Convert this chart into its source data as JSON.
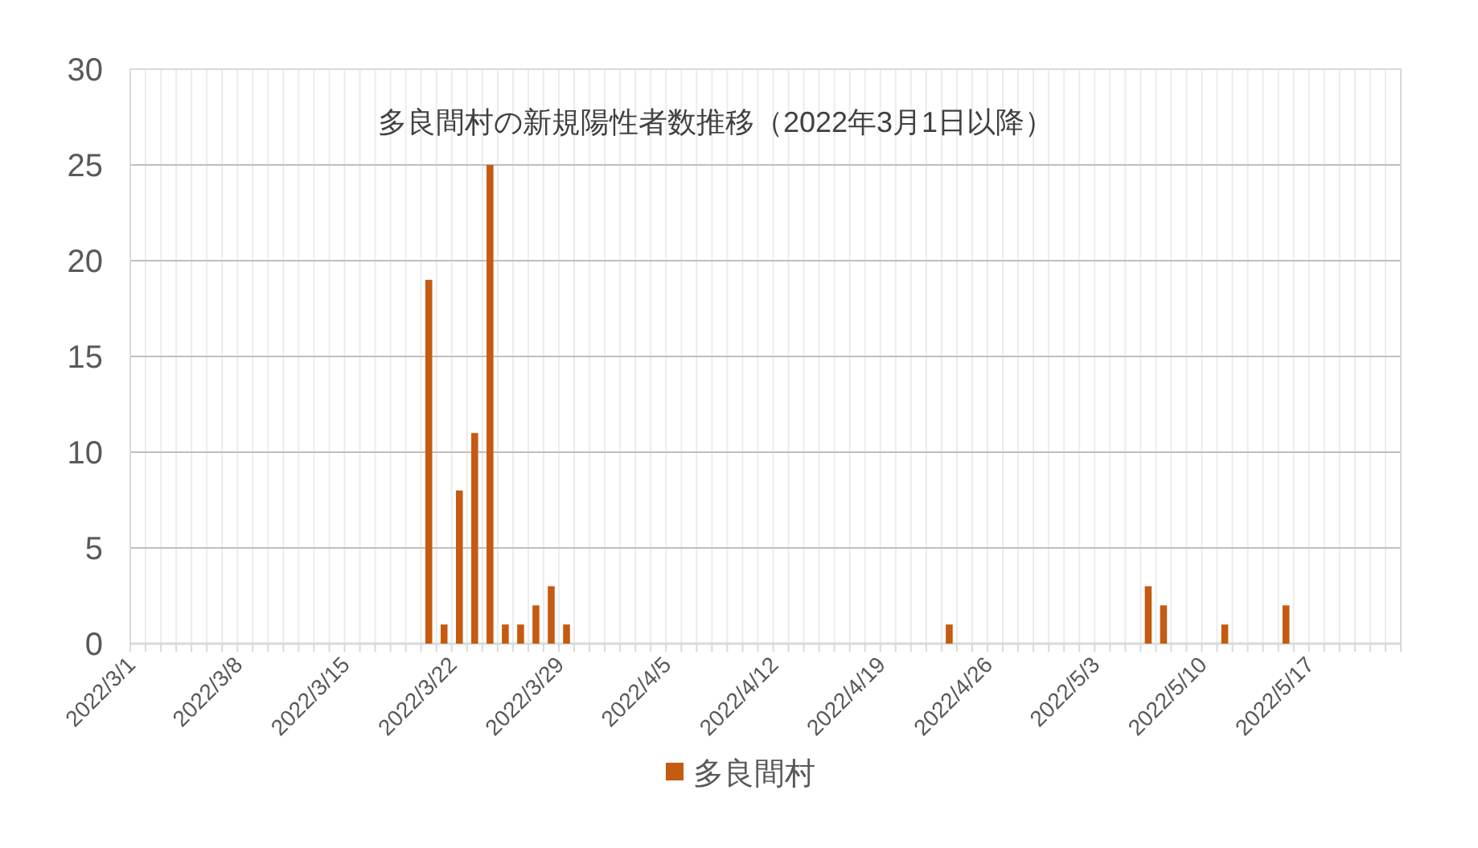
{
  "chart_data": {
    "type": "bar",
    "title": "多良間村の新規陽性者数推移（2022年3月1日以降）",
    "x": [
      "2022-03-20T12:00",
      "2022-03-21T12:00",
      "2022-03-22T12:00",
      "2022-03-23T12:00",
      "2022-03-24T12:00",
      "2022-03-25T12:00",
      "2022-03-26T12:00",
      "2022-03-27T12:00",
      "2022-03-28T12:00",
      "2022-03-29T12:00",
      "2022-04-23T12:00",
      "2022-05-06T12:00",
      "2022-05-07T12:00",
      "2022-05-11T12:00",
      "2022-05-15T12:00"
    ],
    "series": [
      {
        "name": "多良間村",
        "color": "#c55a11",
        "values": [
          19,
          1,
          8,
          11,
          25,
          1,
          1,
          2,
          3,
          1,
          1,
          3,
          2,
          1,
          2
        ]
      }
    ],
    "xlim": [
      "2022-03-01",
      "2022-05-23"
    ],
    "xticks": [
      {
        "value": "2022-03-01",
        "label": "2022/3/1"
      },
      {
        "value": "2022-03-02",
        "label": null
      },
      {
        "value": "2022-03-03",
        "label": null
      },
      {
        "value": "2022-03-04",
        "label": null
      },
      {
        "value": "2022-03-05",
        "label": null
      },
      {
        "value": "2022-03-06",
        "label": null
      },
      {
        "value": "2022-03-07",
        "label": null
      },
      {
        "value": "2022-03-08",
        "label": "2022/3/8"
      },
      {
        "value": "2022-03-09",
        "label": null
      },
      {
        "value": "2022-03-10",
        "label": null
      },
      {
        "value": "2022-03-11",
        "label": null
      },
      {
        "value": "2022-03-12",
        "label": null
      },
      {
        "value": "2022-03-13",
        "label": null
      },
      {
        "value": "2022-03-14",
        "label": null
      },
      {
        "value": "2022-03-15",
        "label": "2022/3/15"
      },
      {
        "value": "2022-03-16",
        "label": null
      },
      {
        "value": "2022-03-17",
        "label": null
      },
      {
        "value": "2022-03-18",
        "label": null
      },
      {
        "value": "2022-03-19",
        "label": null
      },
      {
        "value": "2022-03-20",
        "label": null
      },
      {
        "value": "2022-03-21",
        "label": null
      },
      {
        "value": "2022-03-22",
        "label": "2022/3/22"
      },
      {
        "value": "2022-03-23",
        "label": null
      },
      {
        "value": "2022-03-24",
        "label": null
      },
      {
        "value": "2022-03-25",
        "label": null
      },
      {
        "value": "2022-03-26",
        "label": null
      },
      {
        "value": "2022-03-27",
        "label": null
      },
      {
        "value": "2022-03-28",
        "label": null
      },
      {
        "value": "2022-03-29",
        "label": "2022/3/29"
      },
      {
        "value": "2022-03-30",
        "label": null
      },
      {
        "value": "2022-03-31",
        "label": null
      },
      {
        "value": "2022-04-01",
        "label": null
      },
      {
        "value": "2022-04-02",
        "label": null
      },
      {
        "value": "2022-04-03",
        "label": null
      },
      {
        "value": "2022-04-04",
        "label": null
      },
      {
        "value": "2022-04-05",
        "label": "2022/4/5"
      },
      {
        "value": "2022-04-06",
        "label": null
      },
      {
        "value": "2022-04-07",
        "label": null
      },
      {
        "value": "2022-04-08",
        "label": null
      },
      {
        "value": "2022-04-09",
        "label": null
      },
      {
        "value": "2022-04-10",
        "label": null
      },
      {
        "value": "2022-04-11",
        "label": null
      },
      {
        "value": "2022-04-12",
        "label": "2022/4/12"
      },
      {
        "value": "2022-04-13",
        "label": null
      },
      {
        "value": "2022-04-14",
        "label": null
      },
      {
        "value": "2022-04-15",
        "label": null
      },
      {
        "value": "2022-04-16",
        "label": null
      },
      {
        "value": "2022-04-17",
        "label": null
      },
      {
        "value": "2022-04-18",
        "label": null
      },
      {
        "value": "2022-04-19",
        "label": "2022/4/19"
      },
      {
        "value": "2022-04-20",
        "label": null
      },
      {
        "value": "2022-04-21",
        "label": null
      },
      {
        "value": "2022-04-22",
        "label": null
      },
      {
        "value": "2022-04-23",
        "label": null
      },
      {
        "value": "2022-04-24",
        "label": null
      },
      {
        "value": "2022-04-25",
        "label": null
      },
      {
        "value": "2022-04-26",
        "label": "2022/4/26"
      },
      {
        "value": "2022-04-27",
        "label": null
      },
      {
        "value": "2022-04-28",
        "label": null
      },
      {
        "value": "2022-04-29",
        "label": null
      },
      {
        "value": "2022-04-30",
        "label": null
      },
      {
        "value": "2022-05-01",
        "label": null
      },
      {
        "value": "2022-05-02",
        "label": null
      },
      {
        "value": "2022-05-03",
        "label": "2022/5/3"
      },
      {
        "value": "2022-05-04",
        "label": null
      },
      {
        "value": "2022-05-05",
        "label": null
      },
      {
        "value": "2022-05-06",
        "label": null
      },
      {
        "value": "2022-05-07",
        "label": null
      },
      {
        "value": "2022-05-08",
        "label": null
      },
      {
        "value": "2022-05-09",
        "label": null
      },
      {
        "value": "2022-05-10",
        "label": "2022/5/10"
      },
      {
        "value": "2022-05-11",
        "label": null
      },
      {
        "value": "2022-05-12",
        "label": null
      },
      {
        "value": "2022-05-13",
        "label": null
      },
      {
        "value": "2022-05-14",
        "label": null
      },
      {
        "value": "2022-05-15",
        "label": null
      },
      {
        "value": "2022-05-16",
        "label": null
      },
      {
        "value": "2022-05-17",
        "label": "2022/5/17"
      },
      {
        "value": "2022-05-18",
        "label": null
      },
      {
        "value": "2022-05-19",
        "label": null
      },
      {
        "value": "2022-05-20",
        "label": null
      },
      {
        "value": "2022-05-21",
        "label": null
      },
      {
        "value": "2022-05-22",
        "label": null
      },
      {
        "value": "2022-05-23",
        "label": null
      }
    ],
    "ylim": [
      0,
      30
    ],
    "yticks": [
      0,
      5,
      10,
      15,
      20,
      25,
      30
    ],
    "grid": true,
    "legend": "bottom"
  }
}
